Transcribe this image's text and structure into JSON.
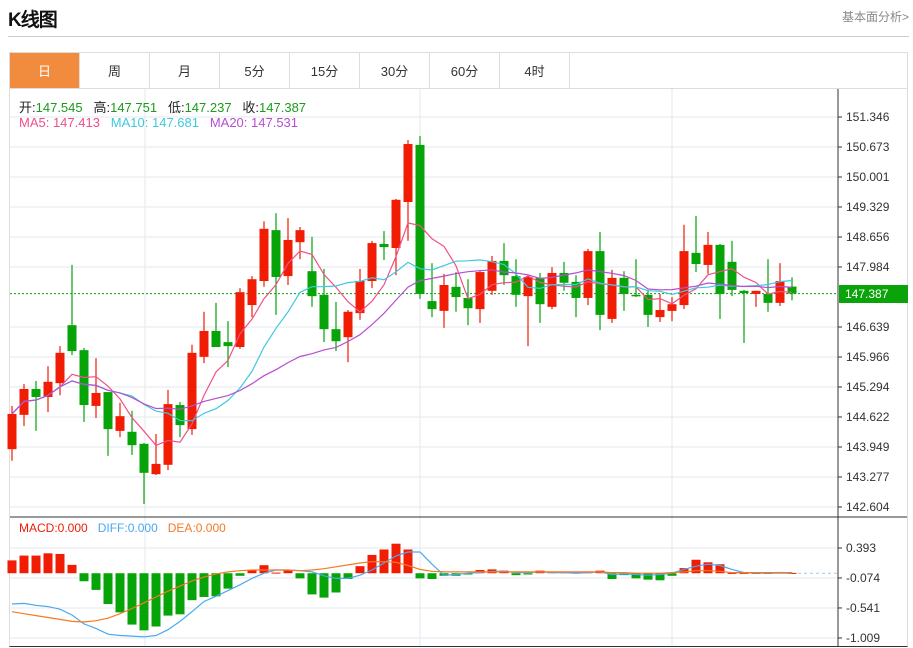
{
  "header": {
    "title": "K线图",
    "link": "基本面分析>"
  },
  "tabs": [
    {
      "label": "日",
      "active": true
    },
    {
      "label": "周"
    },
    {
      "label": "月"
    },
    {
      "label": "5分"
    },
    {
      "label": "15分"
    },
    {
      "label": "30分"
    },
    {
      "label": "60分"
    },
    {
      "label": "4时"
    }
  ],
  "ohlc_info": {
    "open_label": "开:",
    "open": "147.545",
    "high_label": "高:",
    "high": "147.751",
    "low_label": "低:",
    "low": "147.237",
    "close_label": "收:",
    "close": "147.387"
  },
  "ma_info": {
    "ma5": "MA5: 147.413",
    "ma10": "MA10: 147.681",
    "ma20": "MA20: 147.531"
  },
  "macd_info": {
    "macd": "MACD:0.000",
    "diff": "DIFF:0.000",
    "dea": "DEA:0.000"
  },
  "current_price": "147.387",
  "colors": {
    "up": "#f01c04",
    "down": "#07a409",
    "ma5": "#f0508a",
    "ma10": "#3fc8e0",
    "ma20": "#b54fd0",
    "diff": "#4aa8f0",
    "dea": "#f57a22",
    "accent_tab": "#f18c3e",
    "price_tag": "#0aa30a"
  },
  "chart_data": [
    {
      "type": "candlestick",
      "y_ticks": [
        "151.346",
        "150.673",
        "150.001",
        "149.329",
        "148.656",
        "147.984",
        "146.639",
        "145.966",
        "145.294",
        "144.622",
        "143.949",
        "143.277",
        "142.604"
      ],
      "ylim": [
        142.604,
        151.346
      ],
      "grid": true,
      "up_color": "red",
      "down_color": "green",
      "ma_periods": [
        5,
        10,
        20
      ],
      "ohlc": [
        [
          143.9,
          144.87,
          143.64,
          144.69
        ],
        [
          144.67,
          145.36,
          144.42,
          145.25
        ],
        [
          145.25,
          145.43,
          144.31,
          145.07
        ],
        [
          145.07,
          145.76,
          144.73,
          145.41
        ],
        [
          145.38,
          146.21,
          145.11,
          146.06
        ],
        [
          146.68,
          148.03,
          146.01,
          146.1
        ],
        [
          146.12,
          146.17,
          144.51,
          144.89
        ],
        [
          144.87,
          145.94,
          144.6,
          145.16
        ],
        [
          145.18,
          145.18,
          143.75,
          144.35
        ],
        [
          144.31,
          144.94,
          144.17,
          144.64
        ],
        [
          144.29,
          144.76,
          143.77,
          143.99
        ],
        [
          144.02,
          144.04,
          142.67,
          143.37
        ],
        [
          143.34,
          144.24,
          143.32,
          143.57
        ],
        [
          143.55,
          145.23,
          143.43,
          144.91
        ],
        [
          144.89,
          144.96,
          144.17,
          144.44
        ],
        [
          144.35,
          146.24,
          144.22,
          146.06
        ],
        [
          145.97,
          146.98,
          145.83,
          146.55
        ],
        [
          146.55,
          147.18,
          146.19,
          146.19
        ],
        [
          146.3,
          146.77,
          145.74,
          146.21
        ],
        [
          146.19,
          147.51,
          146.15,
          147.42
        ],
        [
          147.13,
          147.78,
          146.86,
          147.71
        ],
        [
          147.67,
          149.01,
          147.54,
          148.84
        ],
        [
          148.81,
          149.19,
          146.91,
          147.76
        ],
        [
          147.78,
          149.08,
          147.58,
          148.59
        ],
        [
          148.54,
          148.88,
          148.16,
          148.81
        ],
        [
          147.89,
          148.66,
          147.09,
          147.33
        ],
        [
          147.36,
          147.94,
          146.3,
          146.59
        ],
        [
          146.59,
          147.2,
          146.1,
          146.32
        ],
        [
          146.41,
          147.02,
          145.85,
          146.98
        ],
        [
          146.95,
          147.94,
          146.8,
          147.67
        ],
        [
          147.67,
          148.57,
          147.51,
          148.52
        ],
        [
          148.5,
          148.79,
          148.14,
          148.43
        ],
        [
          148.41,
          149.51,
          147.8,
          149.49
        ],
        [
          149.44,
          150.83,
          148.57,
          150.74
        ],
        [
          150.72,
          150.92,
          147.27,
          147.38
        ],
        [
          147.22,
          148.07,
          146.86,
          147.04
        ],
        [
          147.0,
          147.83,
          146.62,
          147.58
        ],
        [
          147.54,
          147.87,
          146.98,
          147.31
        ],
        [
          147.29,
          147.71,
          146.68,
          147.06
        ],
        [
          147.04,
          147.89,
          146.73,
          147.87
        ],
        [
          147.45,
          148.23,
          147.36,
          148.12
        ],
        [
          148.12,
          148.52,
          147.58,
          147.8
        ],
        [
          147.78,
          148.16,
          147.09,
          147.36
        ],
        [
          147.33,
          147.8,
          146.21,
          147.76
        ],
        [
          147.74,
          147.85,
          146.73,
          147.15
        ],
        [
          147.09,
          147.98,
          147.04,
          147.85
        ],
        [
          147.85,
          148.1,
          147.45,
          147.63
        ],
        [
          147.65,
          147.8,
          146.86,
          147.29
        ],
        [
          147.29,
          148.39,
          147.13,
          148.34
        ],
        [
          148.34,
          148.77,
          146.57,
          146.91
        ],
        [
          146.82,
          147.92,
          146.73,
          147.74
        ],
        [
          147.74,
          147.89,
          147.0,
          147.38
        ],
        [
          147.36,
          148.16,
          147.31,
          147.33
        ],
        [
          147.36,
          147.47,
          146.64,
          146.91
        ],
        [
          146.86,
          147.38,
          146.75,
          147.02
        ],
        [
          147.0,
          147.31,
          146.77,
          147.15
        ],
        [
          147.13,
          148.93,
          147.04,
          148.34
        ],
        [
          148.3,
          149.13,
          147.87,
          148.05
        ],
        [
          148.03,
          148.77,
          147.83,
          148.48
        ],
        [
          148.48,
          148.5,
          146.82,
          147.38
        ],
        [
          148.1,
          148.57,
          147.33,
          147.47
        ],
        [
          147.45,
          147.47,
          146.28,
          147.4
        ],
        [
          147.38,
          147.45,
          147.09,
          147.45
        ],
        [
          147.38,
          148.16,
          146.98,
          147.18
        ],
        [
          147.18,
          148.07,
          147.11,
          147.67
        ],
        [
          147.545,
          147.751,
          147.237,
          147.387
        ]
      ]
    },
    {
      "type": "macd",
      "y_ticks": [
        "0.393",
        "-0.074",
        "-0.541",
        "-1.009"
      ],
      "ylim": [
        -1.009,
        0.393
      ],
      "histogram": [
        0.2,
        0.275,
        0.275,
        0.31,
        0.3,
        0.13,
        -0.125,
        -0.26,
        -0.48,
        -0.61,
        -0.8,
        -0.89,
        -0.83,
        -0.66,
        -0.64,
        -0.42,
        -0.37,
        -0.36,
        -0.24,
        -0.04,
        0.05,
        0.125,
        0.01,
        0.05,
        -0.08,
        -0.33,
        -0.38,
        -0.3,
        -0.09,
        0.11,
        0.285,
        0.37,
        0.46,
        0.37,
        -0.08,
        -0.09,
        -0.04,
        -0.04,
        -0.02,
        0.05,
        0.06,
        0.04,
        -0.03,
        -0.02,
        0.04,
        0.02,
        0.02,
        0.01,
        0.02,
        0.04,
        -0.09,
        -0.03,
        -0.08,
        -0.1,
        -0.11,
        -0.04,
        0.08,
        0.21,
        0.17,
        0.14,
        0.005,
        0.005,
        0.005,
        0.005,
        0.02,
        0.005
      ],
      "diff": [
        -0.48,
        -0.47,
        -0.5,
        -0.52,
        -0.56,
        -0.65,
        -0.79,
        -0.86,
        -0.95,
        -0.97,
        -0.98,
        -0.99,
        -0.97,
        -0.88,
        -0.75,
        -0.6,
        -0.44,
        -0.36,
        -0.27,
        -0.18,
        -0.08,
        0.0,
        0.05,
        0.05,
        0.04,
        0.02,
        -0.04,
        -0.08,
        -0.08,
        -0.03,
        0.05,
        0.16,
        0.27,
        0.33,
        0.33,
        0.14,
        -0.03,
        -0.02,
        0.0,
        0.01,
        0.03,
        0.03,
        0.01,
        0.01,
        0.02,
        0.01,
        0.01,
        0.0,
        0.01,
        0.02,
        -0.02,
        -0.01,
        -0.02,
        -0.03,
        -0.02,
        0.0,
        0.06,
        0.11,
        0.14,
        0.12,
        0.06,
        0.01,
        0.0,
        0.0,
        0.0,
        0.0
      ],
      "dea": [
        -0.6,
        -0.63,
        -0.66,
        -0.69,
        -0.72,
        -0.75,
        -0.76,
        -0.74,
        -0.7,
        -0.63,
        -0.55,
        -0.46,
        -0.37,
        -0.28,
        -0.2,
        -0.12,
        -0.06,
        -0.01,
        0.02,
        0.04,
        0.05,
        0.05,
        0.05,
        0.05,
        0.04,
        0.05,
        0.07,
        0.1,
        0.13,
        0.16,
        0.18,
        0.18,
        0.17,
        0.12,
        0.06,
        0.03,
        0.02,
        0.02,
        0.02,
        0.02,
        0.02,
        0.02,
        0.02,
        0.02,
        0.02,
        0.02,
        0.02,
        0.02,
        0.02,
        0.02,
        0.01,
        0.01,
        0.0,
        0.0,
        0.0,
        0.01,
        0.02,
        0.04,
        0.04,
        0.03,
        0.01,
        0.01,
        0.01,
        0.01,
        0.01,
        0.01
      ]
    }
  ]
}
